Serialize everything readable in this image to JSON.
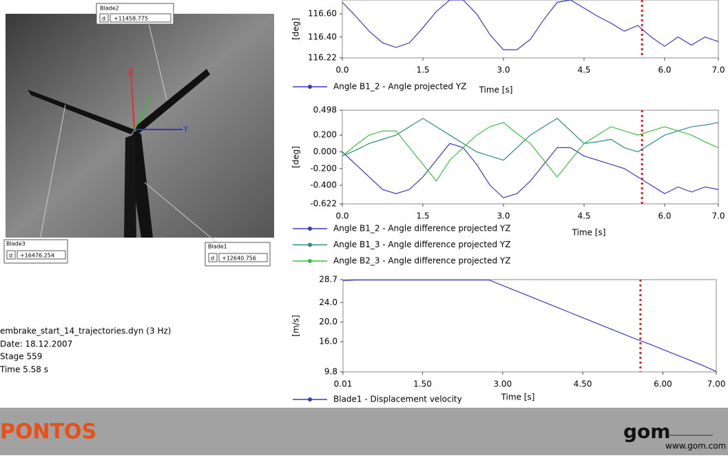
{
  "image_panel": {
    "labels": [
      {
        "name": "Blade2",
        "key": "d",
        "value": "+11458.775"
      },
      {
        "name": "Blade3",
        "key": "d",
        "value": "+16476.254"
      },
      {
        "name": "Blade1",
        "key": "d",
        "value": "+12640.756"
      }
    ],
    "axes": [
      "Z",
      "X",
      "Y"
    ]
  },
  "info": [
    "embrake_start_14_trajectories.dyn (3 Hz)",
    "Date: 18.12.2007",
    "Stage 559",
    "Time 5.58 s"
  ],
  "footer": {
    "brand": "PONTOS",
    "logo": "gom",
    "url": "www.gom.com"
  },
  "chart_data": [
    {
      "type": "line",
      "y_label": "[deg]",
      "x_label": "Time [s]",
      "cursor_x": 5.58,
      "x": [
        0,
        0.25,
        0.5,
        0.75,
        1,
        1.25,
        1.5,
        1.75,
        2,
        2.25,
        2.5,
        2.75,
        3,
        3.25,
        3.5,
        3.75,
        4,
        4.25,
        4.5,
        4.75,
        5,
        5.25,
        5.5,
        5.75,
        6,
        6.25,
        6.5,
        6.75,
        7
      ],
      "xlim": [
        0,
        7
      ],
      "xticks": [
        {
          "value": 0,
          "label": "0.0"
        },
        1.5,
        {
          "value": 3,
          "label": "3.0"
        },
        4.5,
        {
          "value": 6,
          "label": "6.0"
        },
        {
          "value": 7,
          "label": "7.0"
        }
      ],
      "ylim": [
        116.22,
        116.72
      ],
      "yticks": [
        {
          "value": 116.6,
          "label": "116.60"
        },
        {
          "value": 116.4,
          "label": "116.40"
        },
        116.22
      ],
      "series": [
        {
          "name": "Angle B1_2 - Angle projected YZ",
          "color": "#3a3ab8",
          "values": [
            116.7,
            116.58,
            116.45,
            116.35,
            116.31,
            116.35,
            116.48,
            116.62,
            116.72,
            116.72,
            116.6,
            116.42,
            116.29,
            116.29,
            116.38,
            116.55,
            116.7,
            116.72,
            116.65,
            116.58,
            116.52,
            116.45,
            116.5,
            116.4,
            116.32,
            116.4,
            116.33,
            116.4,
            116.36
          ]
        }
      ]
    },
    {
      "type": "line",
      "y_label": "[deg]",
      "x_label": "Time [s]",
      "cursor_x": 5.58,
      "x": [
        0,
        0.25,
        0.5,
        0.75,
        1,
        1.25,
        1.5,
        1.75,
        2,
        2.25,
        2.5,
        2.75,
        3,
        3.25,
        3.5,
        3.75,
        4,
        4.25,
        4.5,
        4.75,
        5,
        5.25,
        5.5,
        5.75,
        6,
        6.25,
        6.5,
        6.75,
        7
      ],
      "xlim": [
        0,
        7
      ],
      "xticks": [
        {
          "value": 0,
          "label": "0.0"
        },
        1.5,
        {
          "value": 3,
          "label": "3.0"
        },
        4.5,
        {
          "value": 6,
          "label": "6.0"
        },
        {
          "value": 7,
          "label": "7.0"
        }
      ],
      "ylim": [
        -0.622,
        0.498
      ],
      "yticks": [
        0.498,
        {
          "value": 0.2,
          "label": "0.200"
        },
        {
          "value": 0,
          "label": "0.000"
        },
        {
          "value": -0.2,
          "label": "-0.200"
        },
        {
          "value": -0.4,
          "label": "-0.400"
        },
        -0.622
      ],
      "series": [
        {
          "name": "Angle B1_2 - Angle difference projected YZ",
          "color": "#3a3ab8",
          "values": [
            0,
            -0.15,
            -0.3,
            -0.45,
            -0.5,
            -0.45,
            -0.3,
            -0.1,
            0.1,
            0.05,
            -0.15,
            -0.4,
            -0.55,
            -0.5,
            -0.35,
            -0.15,
            0.05,
            0.05,
            -0.05,
            -0.1,
            -0.15,
            -0.2,
            -0.3,
            -0.4,
            -0.5,
            -0.42,
            -0.48,
            -0.42,
            -0.45
          ]
        },
        {
          "name": "Angle B1_3 - Angle difference projected YZ",
          "color": "#2a8a8a",
          "values": [
            -0.05,
            0.02,
            0.1,
            0.15,
            0.2,
            0.3,
            0.4,
            0.3,
            0.2,
            0.1,
            0,
            -0.05,
            -0.1,
            0.05,
            0.2,
            0.3,
            0.4,
            0.25,
            0.1,
            0.12,
            0.15,
            0.05,
            0,
            0.1,
            0.2,
            0.25,
            0.3,
            0.32,
            0.35
          ]
        },
        {
          "name": "Angle B2_3 - Angle difference projected YZ",
          "color": "#3cc03c",
          "values": [
            -0.05,
            0.08,
            0.2,
            0.25,
            0.25,
            0.05,
            -0.15,
            -0.35,
            -0.1,
            0.05,
            0.2,
            0.3,
            0.35,
            0.22,
            0.1,
            -0.1,
            -0.3,
            -0.1,
            0.1,
            0.2,
            0.3,
            0.25,
            0.2,
            0.25,
            0.3,
            0.25,
            0.2,
            0.12,
            0.05
          ]
        }
      ]
    },
    {
      "type": "line",
      "y_label": "[m/s]",
      "x_label": "Time [s]",
      "cursor_x": 5.58,
      "x": [
        0.01,
        0.25,
        0.5,
        0.75,
        1,
        1.25,
        1.5,
        1.75,
        2,
        2.25,
        2.5,
        2.75,
        3,
        3.25,
        3.5,
        3.75,
        4,
        4.25,
        4.5,
        4.75,
        5,
        5.25,
        5.5,
        5.75,
        6,
        6.25,
        6.5,
        6.75,
        7
      ],
      "xlim": [
        0.01,
        7
      ],
      "xticks": [
        0.01,
        {
          "value": 1.5,
          "label": "1.50"
        },
        {
          "value": 3,
          "label": "3.00"
        },
        {
          "value": 4.5,
          "label": "4.50"
        },
        {
          "value": 6,
          "label": "6.00"
        },
        {
          "value": 7,
          "label": "7.00"
        }
      ],
      "ylim": [
        9.8,
        28.7
      ],
      "yticks": [
        28.7,
        {
          "value": 24,
          "label": "24.0"
        },
        {
          "value": 20,
          "label": "20.0"
        },
        {
          "value": 16,
          "label": "16.0"
        },
        9.8
      ],
      "series": [
        {
          "name": "Blade1 - Displacement velocity",
          "color": "#3a3ab8",
          "values": [
            28.5,
            28.6,
            28.6,
            28.6,
            28.6,
            28.6,
            28.6,
            28.6,
            28.6,
            28.6,
            28.6,
            28.6,
            27.5,
            26.4,
            25.3,
            24.2,
            23.1,
            22.0,
            20.9,
            19.8,
            18.7,
            17.6,
            16.5,
            15.5,
            14.4,
            13.3,
            12.2,
            11.1,
            9.9
          ]
        }
      ]
    }
  ]
}
